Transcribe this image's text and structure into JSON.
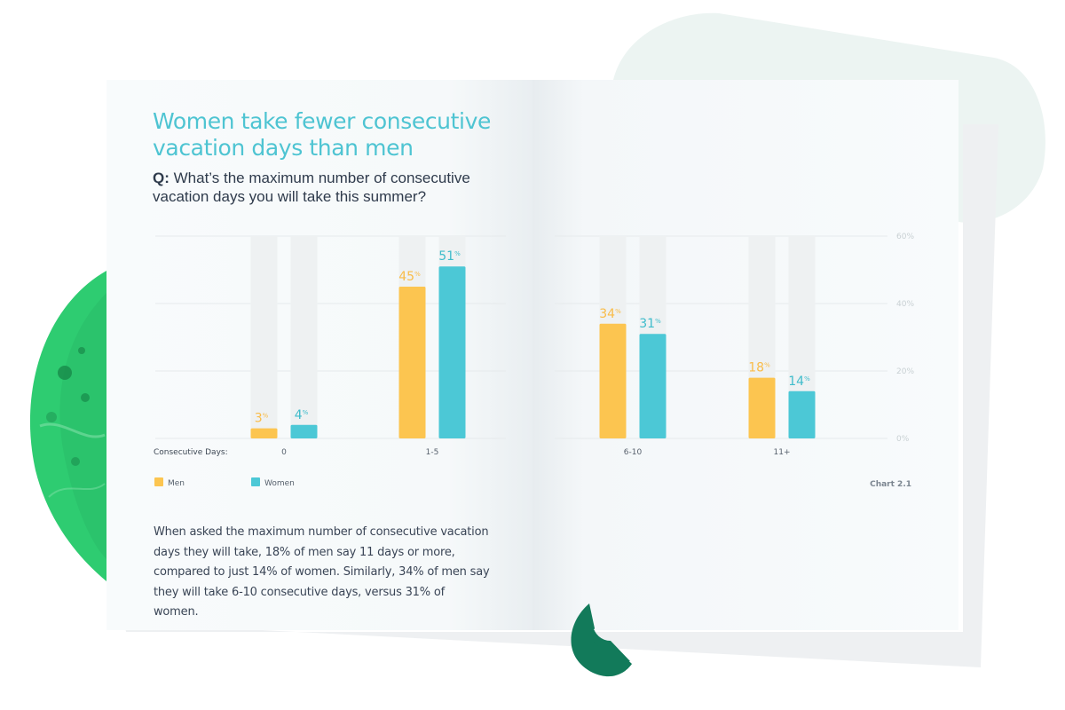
{
  "headline": "Women take fewer consecutive vacation days than men",
  "question": {
    "prefix": "Q:",
    "text": " What’s the maximum number of consecutive vacation days you will take this summer?"
  },
  "body_text": "When asked the maximum number of consecutive vacation days they will take, 18% of men say 11 days or more, compared to just 14% of women. Similarly, 34% of men say they will take 6-10 consecutive days, versus 31% of women.",
  "colors": {
    "men": "#fcc550",
    "women": "#4cc8d6",
    "men_label": "#f9bc48",
    "women_label": "#3fbccb",
    "track": "#eef1f2",
    "headline": "#4ec4d2",
    "blob_green": "#2ecc71",
    "arc_green": "#127a5a",
    "bg_shape": "#ecf4f2"
  },
  "chart_data": {
    "type": "bar",
    "title": "",
    "xlabel": "Consecutive Days:",
    "ylabel": "",
    "categories": [
      "0",
      "1-5",
      "6-10",
      "11+"
    ],
    "series": [
      {
        "name": "Men",
        "values": [
          3,
          45,
          34,
          18
        ]
      },
      {
        "name": "Women",
        "values": [
          4,
          51,
          31,
          14
        ]
      }
    ],
    "value_suffix": "%",
    "ylim": [
      0,
      60
    ],
    "yticks": [
      0,
      20,
      40,
      60
    ],
    "ytick_labels": [
      "0%",
      "20%",
      "40%",
      "60%"
    ],
    "grid": true,
    "legend_position": "bottom-left",
    "caption": "Chart 2.1"
  }
}
